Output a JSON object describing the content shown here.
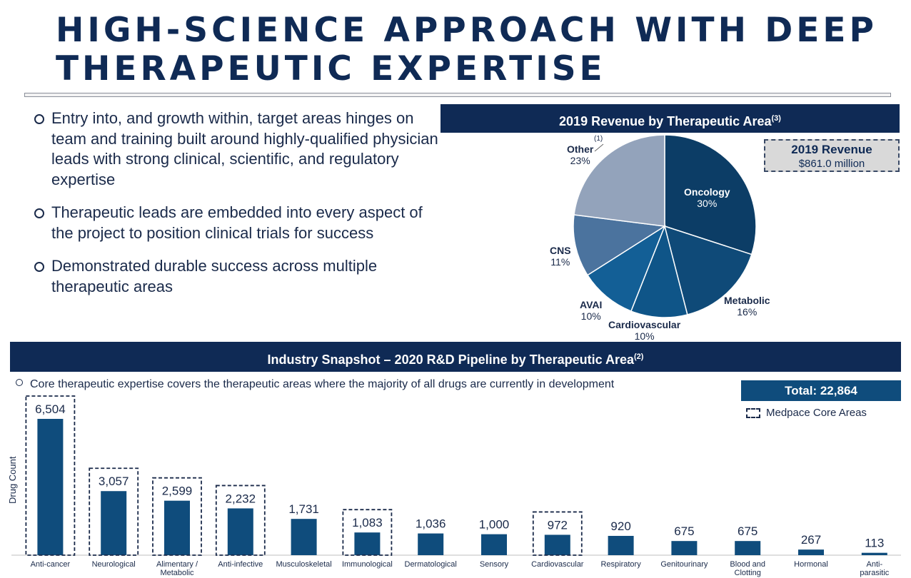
{
  "title_lines": [
    "HIGH-SCIENCE APPROACH WITH DEEP",
    "THERAPEUTIC EXPERTISE"
  ],
  "bullets": [
    "Entry into, and growth within, target areas hinges on team and training built around highly-qualified physician leads with strong clinical, scientific, and regulatory expertise",
    "Therapeutic leads are embedded into every aspect of the project to position clinical trials for success",
    "Demonstrated durable success across multiple therapeutic areas"
  ],
  "pie_banner": {
    "text": "2019 Revenue by Therapeutic Area",
    "note": "(3)"
  },
  "revenue_box": {
    "title": "2019 Revenue",
    "value": "$861.0 million"
  },
  "snapshot_banner": {
    "text": "Industry Snapshot – 2020 R&D Pipeline by Therapeutic Area",
    "note": "(2)"
  },
  "core_note": "Core therapeutic expertise covers the therapeutic areas where the majority of all drugs are currently in development",
  "total": "Total: 22,864",
  "legend_label": "Medpace Core Areas",
  "chart_data": [
    {
      "type": "pie",
      "title": "2019 Revenue by Therapeutic Area",
      "slices": [
        {
          "label": "Oncology",
          "value": 30,
          "pct_label": "30%",
          "color": "#0c3d66"
        },
        {
          "label": "Metabolic",
          "value": 16,
          "pct_label": "16%",
          "color": "#0f4a78"
        },
        {
          "label": "Cardiovascular",
          "value": 10,
          "pct_label": "10%",
          "color": "#0f5588"
        },
        {
          "label": "AVAI",
          "value": 10,
          "pct_label": "10%",
          "color": "#135f96"
        },
        {
          "label": "CNS",
          "value": 11,
          "pct_label": "11%",
          "color": "#4b739e"
        },
        {
          "label": "Other",
          "value": 23,
          "pct_label": "23%",
          "note": "(1)",
          "color": "#93a3bb"
        }
      ],
      "start_angle_deg": 0,
      "direction": "clockwise"
    },
    {
      "type": "bar",
      "ylabel": "Drug Count",
      "categories": [
        "Anti-cancer",
        "Neurological",
        "Alimentary / Metabolic",
        "Anti-infective",
        "Musculoskeletal",
        "Immunological",
        "Dermatological",
        "Sensory",
        "Cardiovascular",
        "Respiratory",
        "Genitourinary",
        "Blood and Clotting",
        "Hormonal",
        "Anti-parasitic"
      ],
      "values": [
        6504,
        3057,
        2599,
        2232,
        1731,
        1083,
        1036,
        1000,
        972,
        920,
        675,
        675,
        267,
        113
      ],
      "value_labels": [
        "6,504",
        "3,057",
        "2,599",
        "2,232",
        "1,731",
        "1,083",
        "1,036",
        "1,000",
        "972",
        "920",
        "675",
        "675",
        "267",
        "113"
      ],
      "core_areas": [
        true,
        true,
        true,
        true,
        false,
        true,
        false,
        false,
        true,
        false,
        false,
        false,
        false,
        false
      ],
      "ylim": [
        0,
        6504
      ],
      "bar_color": "#0f4c7c",
      "grid": false
    }
  ]
}
